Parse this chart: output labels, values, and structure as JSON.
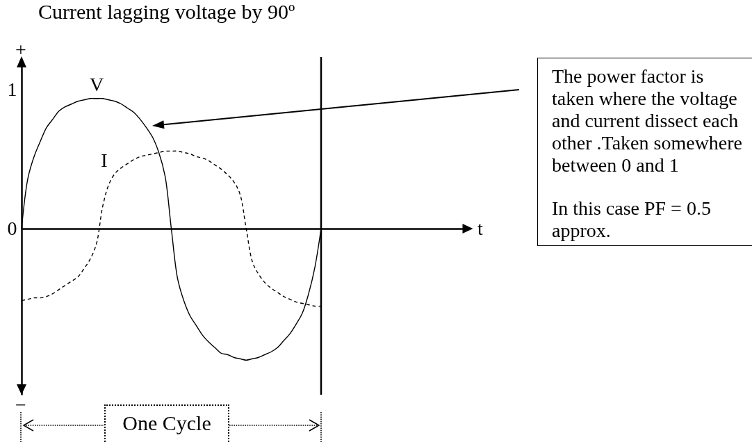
{
  "chart_data": {
    "type": "line",
    "title": "Current lagging voltage by 90º",
    "xlabel": "t",
    "categories": [
      null,
      null,
      null,
      null,
      null,
      null,
      null,
      null,
      null,
      null,
      null,
      null,
      null,
      null,
      null,
      null,
      null,
      null,
      null,
      null,
      null,
      null,
      null,
      null,
      null,
      null,
      null,
      null,
      null,
      null,
      null,
      null,
      null,
      null,
      null,
      null,
      null,
      null,
      null,
      null,
      null,
      null,
      null,
      null,
      null,
      null,
      null,
      null,
      null,
      null,
      null,
      null,
      null,
      null,
      null,
      null,
      null,
      null,
      null,
      null,
      null,
      null,
      null,
      null,
      null,
      null,
      null,
      null,
      null,
      null,
      null,
      null
    ],
    "ylim": [
      -1.2,
      1.2
    ],
    "yticks": [
      0,
      1
    ],
    "tick_labels": "y",
    "series": [
      {
        "name": "V",
        "color": "#000000",
        "line_style": "solid",
        "values": [
          0,
          0.36,
          0.52,
          0.63,
          0.73,
          0.79,
          0.85,
          0.88,
          0.9,
          0.92,
          0.93,
          0.94,
          0.94,
          0.94,
          0.93,
          0.92,
          0.9,
          0.87,
          0.84,
          0.79,
          0.73,
          0.66,
          0.55,
          0.38,
          0,
          -0.36,
          -0.52,
          -0.63,
          -0.7,
          -0.77,
          -0.82,
          -0.86,
          -0.9,
          -0.91,
          -0.93,
          -0.94,
          -0.95,
          -0.94,
          -0.93,
          -0.91,
          -0.89,
          -0.86,
          -0.81,
          -0.76,
          -0.69,
          -0.61,
          -0.47,
          -0.28,
          0,
          null,
          null,
          null,
          null,
          null,
          null,
          null,
          null,
          null,
          null,
          null,
          null,
          null,
          null,
          null,
          null,
          null,
          null,
          null,
          null,
          null,
          null,
          null
        ]
      },
      {
        "name": "I",
        "color": "#000000",
        "line_style": "dashed",
        "values": [
          -0.52,
          -0.51,
          -0.5,
          -0.5,
          -0.49,
          -0.47,
          -0.44,
          -0.41,
          -0.38,
          -0.35,
          -0.29,
          -0.22,
          -0.11,
          0.16,
          0.32,
          0.4,
          0.44,
          0.47,
          0.5,
          0.52,
          0.53,
          0.54,
          0.55,
          0.56,
          0.56,
          0.56,
          0.55,
          0.54,
          0.52,
          0.51,
          0.49,
          0.46,
          0.43,
          0.39,
          0.34,
          0.25,
          0,
          -0.24,
          -0.33,
          -0.39,
          -0.43,
          -0.46,
          -0.49,
          -0.51,
          -0.53,
          -0.54,
          -0.55,
          -0.56,
          -0.56,
          null,
          null,
          null,
          null,
          null,
          null,
          null,
          null,
          null,
          null,
          null,
          null,
          null,
          null,
          null,
          null,
          null,
          null,
          null,
          null,
          null,
          null,
          null
        ]
      }
    ],
    "annotations": [
      "+",
      "−",
      "The power factor is taken where the voltage and current dissect each other .Taken somewhere between 0 and 1",
      "In this case PF = 0.5 approx.",
      "One Cycle"
    ]
  }
}
